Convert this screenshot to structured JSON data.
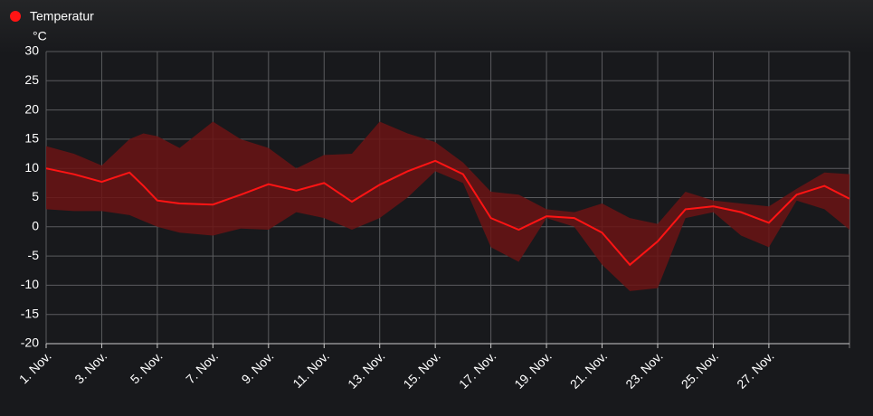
{
  "chart_data": {
    "type": "line",
    "y_label": "°C",
    "x": [
      1,
      2,
      3,
      4,
      4.5,
      5,
      5.8,
      7,
      8,
      9,
      10,
      11,
      12,
      13,
      14,
      15,
      16,
      17,
      18,
      19,
      20,
      21,
      22,
      23,
      24,
      25,
      26,
      27,
      28,
      29,
      29.9
    ],
    "series": [
      {
        "name": "Temperatur",
        "color": "#ff1414",
        "values": [
          10,
          9,
          7.7,
          9.3,
          7,
          4.5,
          4,
          3.8,
          5.5,
          7.3,
          6.2,
          7.5,
          4.3,
          7.2,
          9.5,
          11.3,
          9,
          1.5,
          -0.5,
          1.8,
          1.5,
          -1,
          -6.5,
          -2.5,
          3,
          3.5,
          2.5,
          0.7,
          5.5,
          7,
          4.8
        ],
        "range_high": [
          13.8,
          12.5,
          10.5,
          15,
          16,
          15.5,
          13.5,
          18,
          15,
          13.5,
          10,
          12.3,
          12.5,
          18,
          16,
          14.5,
          11,
          6,
          5.5,
          3,
          2.5,
          4,
          1.5,
          0.5,
          6,
          4.5,
          4,
          3.5,
          6.5,
          9.3,
          9
        ],
        "range_low": [
          3,
          2.7,
          2.7,
          2,
          1,
          0,
          -1,
          -1.5,
          -0.3,
          -0.5,
          2.5,
          1.5,
          -0.5,
          1.5,
          5,
          9.5,
          7.5,
          -3.5,
          -6,
          1.5,
          0,
          -6.5,
          -11,
          -10.5,
          1.5,
          2.5,
          -1.5,
          -3.5,
          4.5,
          3,
          -0.5
        ],
        "range_color": "#6b1414"
      }
    ],
    "xlim": [
      1,
      29.9
    ],
    "xticks": [
      {
        "value": 1,
        "label": "1. Nov."
      },
      {
        "value": 3,
        "label": "3. Nov."
      },
      {
        "value": 5,
        "label": "5. Nov."
      },
      {
        "value": 7,
        "label": "7. Nov."
      },
      {
        "value": 9,
        "label": "9. Nov."
      },
      {
        "value": 11,
        "label": "11. Nov."
      },
      {
        "value": 13,
        "label": "13. Nov."
      },
      {
        "value": 15,
        "label": "15. Nov."
      },
      {
        "value": 17,
        "label": "17. Nov."
      },
      {
        "value": 19,
        "label": "19. Nov."
      },
      {
        "value": 21,
        "label": "21. Nov."
      },
      {
        "value": 23,
        "label": "23. Nov."
      },
      {
        "value": 25,
        "label": "25. Nov."
      },
      {
        "value": 27,
        "label": "27. Nov."
      }
    ],
    "ylim": [
      -20,
      30
    ],
    "yticks": [
      -20,
      -15,
      -10,
      -5,
      0,
      5,
      10,
      15,
      20,
      25,
      30
    ],
    "grid": true
  }
}
